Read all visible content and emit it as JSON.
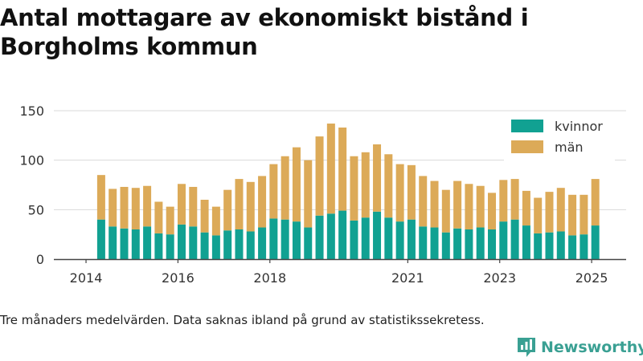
{
  "title": "Antal mottagare av ekonomiskt bistånd i Borgholms kommun",
  "footnote": "Tre månaders medelvärden. Data saknas ibland på grund av statistikssekretess.",
  "brand": {
    "name": "Newsworthy",
    "icon": "bar-chart-logo-icon"
  },
  "colors": {
    "kvinnor": "#11a192",
    "man": "#dcaa58",
    "grid": "#d9d9d9",
    "axis": "#444444"
  },
  "chart_data": {
    "type": "bar",
    "stacked": true,
    "title": "",
    "xlabel": "",
    "ylabel": "",
    "ylim": [
      0,
      150
    ],
    "yticks": [
      0,
      50,
      100,
      150
    ],
    "xticks": [
      "2014",
      "2016",
      "2018",
      "2021",
      "2023",
      "2025"
    ],
    "xtick_positions": [
      2014.0,
      2016.0,
      2018.0,
      2021.0,
      2023.0,
      2025.0
    ],
    "xlim": [
      2013.3,
      2025.75
    ],
    "grid": true,
    "legend_position": "top-right",
    "x": [
      2014.33,
      2014.58,
      2014.83,
      2015.08,
      2015.33,
      2015.58,
      2015.83,
      2016.08,
      2016.33,
      2016.58,
      2016.83,
      2017.08,
      2017.33,
      2017.58,
      2017.83,
      2018.08,
      2018.33,
      2018.58,
      2018.83,
      2019.08,
      2019.33,
      2019.58,
      2019.83,
      2020.08,
      2020.33,
      2020.58,
      2020.83,
      2021.08,
      2021.33,
      2021.58,
      2021.83,
      2022.08,
      2022.33,
      2022.58,
      2022.83,
      2023.08,
      2023.33,
      2023.58,
      2023.83,
      2024.08,
      2024.33,
      2024.58,
      2024.83,
      2025.08
    ],
    "series": [
      {
        "name": "kvinnor",
        "values": [
          40,
          33,
          31,
          30,
          33,
          26,
          25,
          35,
          33,
          27,
          24,
          29,
          30,
          28,
          32,
          41,
          40,
          38,
          32,
          44,
          46,
          49,
          39,
          42,
          48,
          42,
          38,
          40,
          33,
          32,
          27,
          31,
          30,
          32,
          30,
          38,
          40,
          34,
          26,
          27,
          28,
          24,
          25,
          34
        ]
      },
      {
        "name": "män",
        "values": [
          45,
          38,
          42,
          42,
          41,
          32,
          28,
          41,
          40,
          33,
          29,
          41,
          51,
          50,
          52,
          55,
          64,
          75,
          68,
          80,
          91,
          84,
          65,
          66,
          68,
          64,
          58,
          55,
          51,
          47,
          43,
          48,
          46,
          42,
          37,
          42,
          41,
          35,
          36,
          41,
          44,
          41,
          40,
          47
        ]
      }
    ]
  }
}
